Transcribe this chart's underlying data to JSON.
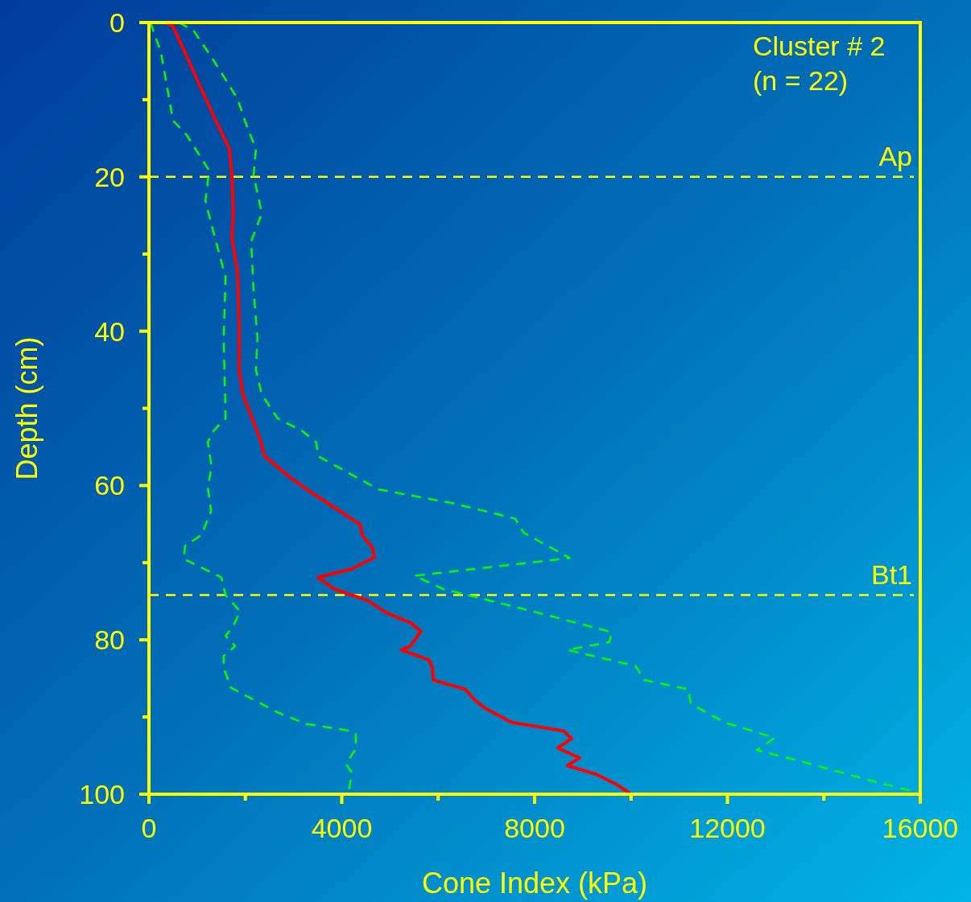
{
  "chart_data": {
    "type": "line",
    "xlabel": "Cone Index (kPa)",
    "ylabel": "Depth (cm)",
    "xlim": [
      0,
      16000
    ],
    "ylim": [
      100,
      0
    ],
    "xticks": [
      0,
      {
        "value": 2000,
        "label": null
      },
      4000,
      {
        "value": 6000,
        "label": null
      },
      8000,
      {
        "value": 10000,
        "label": null
      },
      12000,
      {
        "value": 14000,
        "label": null
      },
      16000
    ],
    "yticks": [
      0,
      {
        "value": 10,
        "label": null
      },
      20,
      {
        "value": 30,
        "label": null
      },
      40,
      {
        "value": 50,
        "label": null
      },
      60,
      {
        "value": 70,
        "label": null
      },
      80,
      {
        "value": 90,
        "label": null
      },
      100
    ],
    "grid": false,
    "marker": "none",
    "annotations": [
      "Cluster # 2",
      "(n = 22)"
    ],
    "ref_lines": [
      {
        "axis": "y",
        "value": 20,
        "label": "Ap",
        "color": "#ffff00",
        "line_style": "dashed"
      },
      {
        "axis": "y",
        "value": 74.2,
        "label": "Bt1",
        "color": "#ffff00",
        "line_style": "dashed"
      }
    ],
    "series": [
      {
        "color": "#ff0000",
        "line_style": "solid",
        "x": [
          330,
          500,
          785,
          1085,
          1385,
          1670,
          1720,
          1750,
          1720,
          1840,
          1870,
          1870,
          1950,
          2140,
          2300,
          2400,
          2670,
          2960,
          3390,
          4010,
          4390,
          4420,
          4630,
          4680,
          4210,
          3510,
          3840,
          4260,
          4510,
          4930,
          5430,
          5640,
          5430,
          5230,
          5810,
          5880,
          5900,
          6560,
          6760,
          6960,
          7310,
          7520,
          8600,
          8770,
          8480,
          8930,
          8680,
          9270,
          9690,
          10000
        ],
        "values": [
          0,
          0.5,
          4.4,
          8.6,
          12.7,
          16.4,
          19.8,
          24.7,
          27.8,
          32.5,
          38.8,
          45,
          48.2,
          51.3,
          53.9,
          56.2,
          57.6,
          59.1,
          61,
          63.5,
          65.1,
          66.4,
          68,
          69.3,
          70.8,
          71.9,
          73.4,
          74.3,
          74.8,
          76.5,
          77.8,
          78.9,
          80.8,
          81.3,
          82.6,
          83.6,
          85.2,
          86.4,
          87.8,
          88.8,
          90,
          90.7,
          91.8,
          92.8,
          94,
          95.3,
          96.3,
          97.4,
          98.7,
          100
        ]
      },
      {
        "color": "#00ff00",
        "line_style": "dashed",
        "x": [
          620,
          920,
          1340,
          1840,
          2000,
          2220,
          2170,
          2340,
          2120,
          2170,
          2250,
          2220,
          2340,
          2670,
          3170,
          3470,
          3510,
          4760,
          6310,
          7600,
          7770,
          8730,
          5510,
          6100,
          7770,
          9600,
          9550,
          8680,
          10100,
          10270,
          11190,
          11240,
          11940,
          12980,
          12610,
          13440,
          14950,
          15950
        ],
        "values": [
          0,
          1,
          4.9,
          9.9,
          12.9,
          16.4,
          19.8,
          24.7,
          28.4,
          34.6,
          40.9,
          45,
          48.2,
          51.3,
          52.9,
          54.4,
          56.2,
          60.5,
          62.3,
          64.3,
          66.1,
          69.4,
          71.7,
          73.4,
          76,
          79,
          80.3,
          81.3,
          83.4,
          85.2,
          86.4,
          88.3,
          90.7,
          92.7,
          94.3,
          95.6,
          98.2,
          99.8
        ]
      },
      {
        "color": "#00ff00",
        "line_style": "dashed",
        "x": [
          30,
          250,
          500,
          785,
          1250,
          1170,
          1390,
          1590,
          1550,
          1590,
          1340,
          1220,
          1300,
          1220,
          1290,
          1090,
          750,
          720,
          1500,
          1590,
          1890,
          1750,
          1590,
          1790,
          1550,
          1550,
          1700,
          2670,
          3260,
          4090,
          4290,
          4290,
          4090,
          4210,
          4140
        ],
        "values": [
          0,
          3.9,
          12.7,
          14.6,
          19.2,
          23.1,
          28.4,
          33,
          40.9,
          51.3,
          52.9,
          54.4,
          57.6,
          60.2,
          63.3,
          66.4,
          67.8,
          69.5,
          71.9,
          74.2,
          76.3,
          78.2,
          79.5,
          80.8,
          82.1,
          83.6,
          86.2,
          89.4,
          90.9,
          91.7,
          92.2,
          94.1,
          96.1,
          97.2,
          99.8
        ]
      }
    ]
  }
}
